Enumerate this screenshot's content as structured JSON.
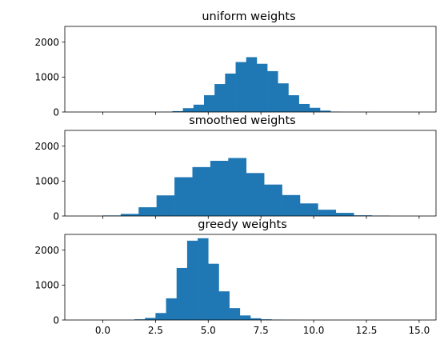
{
  "chart_data": [
    {
      "type": "bar",
      "title": "uniform weights",
      "xlim": [
        -1.8,
        15.8
      ],
      "ylim": [
        0,
        2450
      ],
      "yticks": [
        0,
        1000,
        2000
      ],
      "bin_edges": [
        2.8,
        3.3,
        3.8,
        4.3,
        4.8,
        5.3,
        5.8,
        6.3,
        6.8,
        7.3,
        7.8,
        8.3,
        8.8,
        9.3,
        9.8,
        10.3,
        10.8,
        11.3,
        11.8,
        12.3,
        12.8
      ],
      "values": [
        5,
        25,
        110,
        210,
        480,
        800,
        1100,
        1430,
        1570,
        1380,
        1170,
        820,
        480,
        230,
        120,
        40,
        10,
        3,
        1,
        1
      ],
      "color": "#1f77b4"
    },
    {
      "type": "bar",
      "title": "smoothed weights",
      "xlim": [
        -1.8,
        15.8
      ],
      "ylim": [
        0,
        2450
      ],
      "yticks": [
        0,
        1000,
        2000
      ],
      "bin_edges": [
        0.0,
        0.85,
        1.7,
        2.55,
        3.4,
        4.25,
        5.1,
        5.95,
        6.8,
        7.65,
        8.5,
        9.35,
        10.2,
        11.05,
        11.9,
        12.75,
        13.6
      ],
      "values": [
        15,
        60,
        250,
        590,
        1110,
        1400,
        1580,
        1660,
        1230,
        900,
        600,
        360,
        180,
        90,
        20,
        10
      ],
      "color": "#1f77b4"
    },
    {
      "type": "bar",
      "title": "greedy weights",
      "xlim": [
        -1.8,
        15.8
      ],
      "ylim": [
        0,
        2450
      ],
      "yticks": [
        0,
        1000,
        2000
      ],
      "xticks": [
        0.0,
        2.5,
        5.0,
        7.5,
        10.0,
        12.5,
        15.0
      ],
      "xtick_labels": [
        "0.0",
        "2.5",
        "5.0",
        "7.5",
        "10.0",
        "12.5",
        "15.0"
      ],
      "bin_edges": [
        1.5,
        2.0,
        2.5,
        3.0,
        3.5,
        4.0,
        4.5,
        5.0,
        5.5,
        6.0,
        6.5,
        7.0,
        7.5,
        8.0,
        8.5,
        9.0,
        9.5
      ],
      "values": [
        20,
        60,
        200,
        620,
        1490,
        2270,
        2340,
        1610,
        820,
        340,
        130,
        50,
        20,
        10,
        5,
        2
      ],
      "color": "#1f77b4"
    }
  ]
}
